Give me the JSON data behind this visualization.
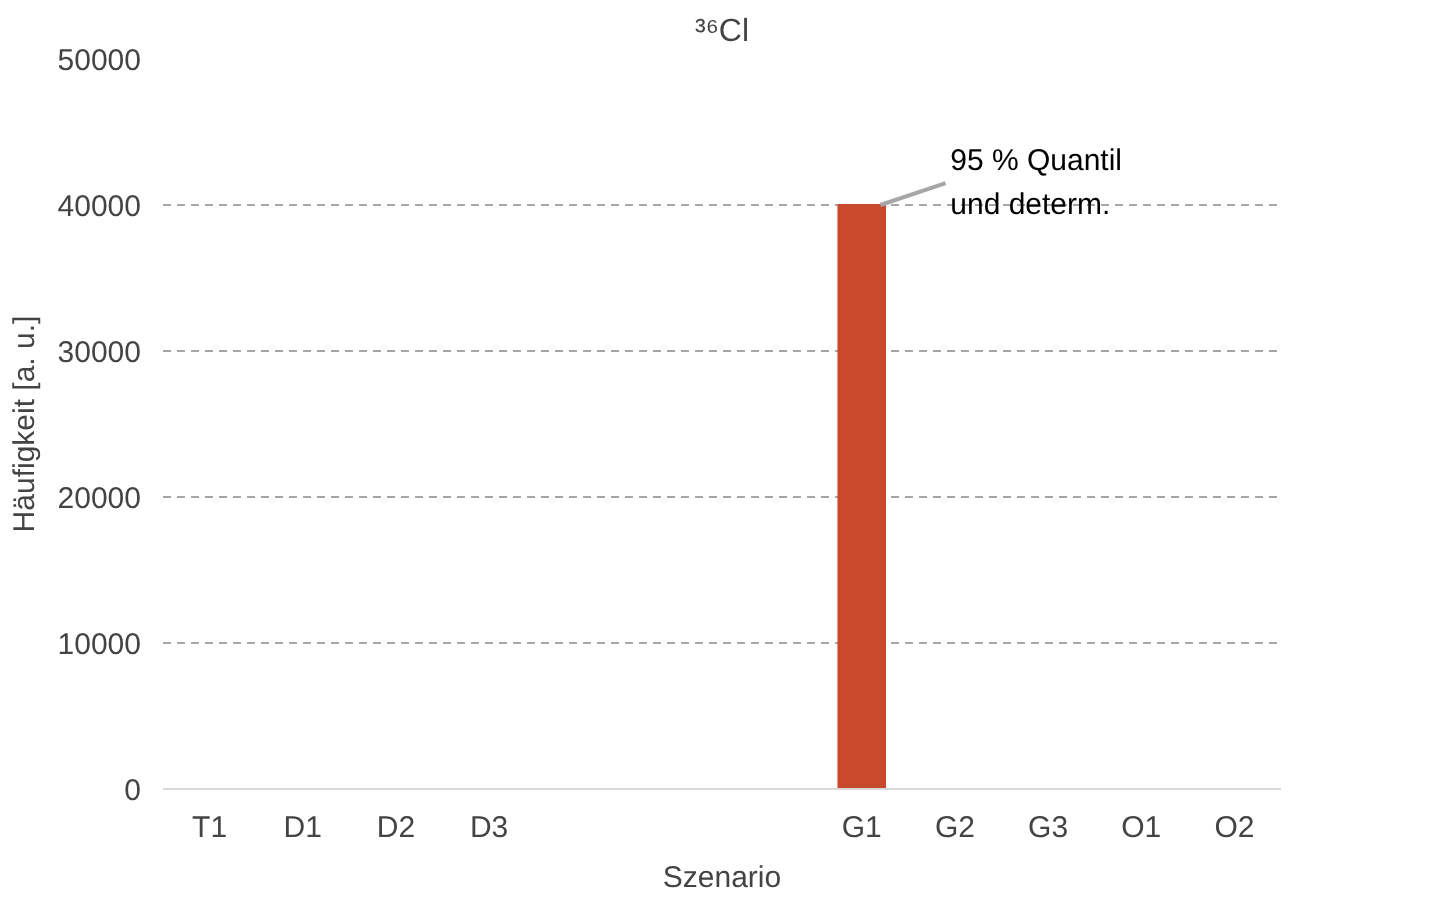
{
  "chart_data": {
    "type": "bar",
    "title": "³⁶Cl",
    "xlabel": "Szenario",
    "ylabel": "Häufigkeit [a. u.]",
    "categories": [
      "T1",
      "D1",
      "D2",
      "D3",
      null,
      null,
      null,
      "G1",
      "G2",
      "G3",
      "O1",
      "O2"
    ],
    "values": [
      0,
      0,
      0,
      0,
      0,
      0,
      0,
      40000,
      0,
      0,
      0,
      0
    ],
    "color": "#c9492c",
    "ylim": [
      0,
      50000
    ],
    "yticks": [
      0,
      10000,
      20000,
      30000,
      40000,
      50000
    ],
    "grid": "y",
    "annotations": [
      {
        "text": "95 % Quantil\nund determ.",
        "x": "G1",
        "y": 40000
      }
    ]
  }
}
